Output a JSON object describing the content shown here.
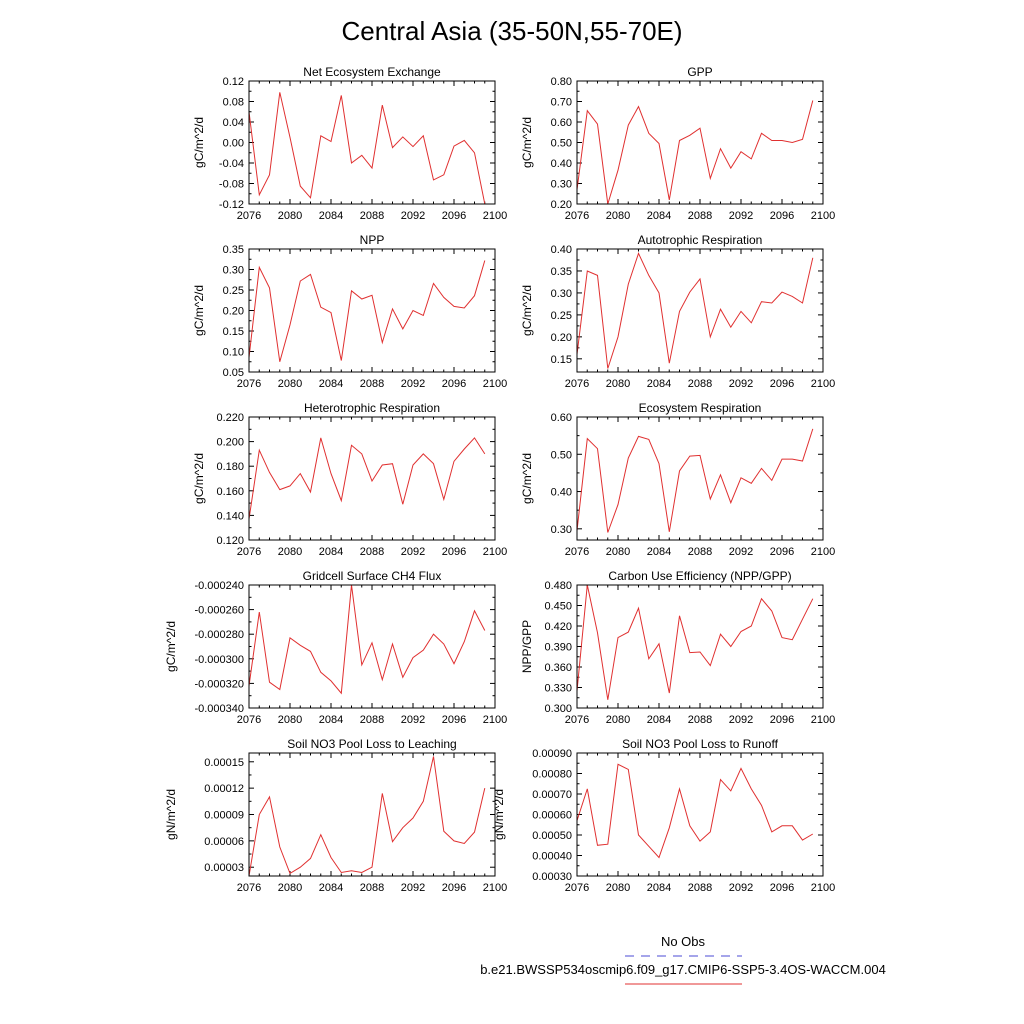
{
  "title": "Central Asia (35-50N,55-70E)",
  "legend": {
    "obs_label": "No Obs",
    "obs_color": "#4b4bd6",
    "model_label": "b.e21.BWSSP534oscmip6.f09_g17.CMIP6-SSP5-3.4OS-WACCM.004",
    "model_color": "#e03030"
  },
  "chart_data": [
    {
      "type": "line",
      "title": "Net Ecosystem Exchange",
      "ylabel": "gC/m^2/d",
      "xlim": [
        2076,
        2100
      ],
      "ylim": [
        -0.12,
        0.12
      ],
      "xticks": [
        "2076",
        "2080",
        "2084",
        "2088",
        "2092",
        "2096",
        "2100"
      ],
      "yticks": [
        "-0.12",
        "-0.08",
        "-0.04",
        "0.00",
        "0.04",
        "0.08",
        "0.12"
      ],
      "x": [
        2075,
        2076,
        2077,
        2078,
        2079,
        2080,
        2081,
        2082,
        2083,
        2084,
        2085,
        2086,
        2087,
        2088,
        2089,
        2090,
        2091,
        2092,
        2093,
        2094,
        2095,
        2096,
        2097,
        2098,
        2099
      ],
      "series": [
        {
          "values": [
            0.07,
            0.06,
            -0.102,
            -0.063,
            0.098,
            0.01,
            -0.085,
            -0.108,
            0.013,
            0.002,
            0.092,
            -0.04,
            -0.025,
            -0.05,
            0.073,
            -0.01,
            0.011,
            -0.008,
            0.013,
            -0.073,
            -0.063,
            -0.007,
            0.004,
            -0.02,
            -0.12
          ]
        }
      ]
    },
    {
      "type": "line",
      "title": "GPP",
      "ylabel": "gC/m^2/d",
      "xlim": [
        2076,
        2100
      ],
      "ylim": [
        0.2,
        0.8
      ],
      "xticks": [
        "2076",
        "2080",
        "2084",
        "2088",
        "2092",
        "2096",
        "2100"
      ],
      "yticks": [
        "0.20",
        "0.30",
        "0.40",
        "0.50",
        "0.60",
        "0.70",
        "0.80"
      ],
      "x": [
        2076,
        2077,
        2078,
        2079,
        2080,
        2081,
        2082,
        2083,
        2084,
        2085,
        2086,
        2087,
        2088,
        2089,
        2090,
        2091,
        2092,
        2093,
        2094,
        2095,
        2096,
        2097,
        2098,
        2099
      ],
      "series": [
        {
          "values": [
            0.27,
            0.655,
            0.59,
            0.2,
            0.365,
            0.585,
            0.675,
            0.545,
            0.495,
            0.22,
            0.51,
            0.535,
            0.57,
            0.325,
            0.47,
            0.375,
            0.455,
            0.42,
            0.545,
            0.51,
            0.51,
            0.5,
            0.515,
            0.705
          ]
        }
      ]
    },
    {
      "type": "line",
      "title": "NPP",
      "ylabel": "gC/m^2/d",
      "xlim": [
        2076,
        2100
      ],
      "ylim": [
        0.05,
        0.35
      ],
      "xticks": [
        "2076",
        "2080",
        "2084",
        "2088",
        "2092",
        "2096",
        "2100"
      ],
      "yticks": [
        "0.05",
        "0.10",
        "0.15",
        "0.20",
        "0.25",
        "0.30",
        "0.35"
      ],
      "x": [
        2076,
        2077,
        2078,
        2079,
        2080,
        2081,
        2082,
        2083,
        2084,
        2085,
        2086,
        2087,
        2088,
        2089,
        2090,
        2091,
        2092,
        2093,
        2094,
        2095,
        2096,
        2097,
        2098,
        2099
      ],
      "series": [
        {
          "values": [
            0.085,
            0.305,
            0.255,
            0.075,
            0.165,
            0.272,
            0.288,
            0.208,
            0.195,
            0.078,
            0.248,
            0.228,
            0.237,
            0.122,
            0.204,
            0.155,
            0.2,
            0.188,
            0.266,
            0.232,
            0.21,
            0.206,
            0.236,
            0.322
          ]
        }
      ]
    },
    {
      "type": "line",
      "title": "Autotrophic Respiration",
      "ylabel": "gC/m^2/d",
      "xlim": [
        2076,
        2100
      ],
      "ylim": [
        0.12,
        0.4
      ],
      "xticks": [
        "2076",
        "2080",
        "2084",
        "2088",
        "2092",
        "2096",
        "2100"
      ],
      "yticks": [
        "0.15",
        "0.20",
        "0.25",
        "0.30",
        "0.35",
        "0.40"
      ],
      "x": [
        2076,
        2077,
        2078,
        2079,
        2080,
        2081,
        2082,
        2083,
        2084,
        2085,
        2086,
        2087,
        2088,
        2089,
        2090,
        2091,
        2092,
        2093,
        2094,
        2095,
        2096,
        2097,
        2098,
        2099
      ],
      "series": [
        {
          "values": [
            0.16,
            0.35,
            0.34,
            0.128,
            0.2,
            0.32,
            0.39,
            0.34,
            0.3,
            0.14,
            0.258,
            0.302,
            0.332,
            0.2,
            0.263,
            0.222,
            0.258,
            0.232,
            0.28,
            0.277,
            0.302,
            0.292,
            0.277,
            0.38
          ]
        }
      ]
    },
    {
      "type": "line",
      "title": "Heterotrophic Respiration",
      "ylabel": "gC/m^2/d",
      "xlim": [
        2076,
        2100
      ],
      "ylim": [
        0.12,
        0.22
      ],
      "xticks": [
        "2076",
        "2080",
        "2084",
        "2088",
        "2092",
        "2096",
        "2100"
      ],
      "yticks": [
        "0.120",
        "0.140",
        "0.160",
        "0.180",
        "0.200",
        "0.220"
      ],
      "x": [
        2076,
        2077,
        2078,
        2079,
        2080,
        2081,
        2082,
        2083,
        2084,
        2085,
        2086,
        2087,
        2088,
        2089,
        2090,
        2091,
        2092,
        2093,
        2094,
        2095,
        2096,
        2097,
        2098,
        2099
      ],
      "series": [
        {
          "values": [
            0.137,
            0.193,
            0.175,
            0.161,
            0.164,
            0.174,
            0.159,
            0.203,
            0.174,
            0.152,
            0.197,
            0.19,
            0.168,
            0.181,
            0.182,
            0.149,
            0.181,
            0.19,
            0.182,
            0.153,
            0.184,
            0.194,
            0.203,
            0.19
          ]
        }
      ]
    },
    {
      "type": "line",
      "title": "Ecosystem Respiration",
      "ylabel": "gC/m^2/d",
      "xlim": [
        2076,
        2100
      ],
      "ylim": [
        0.27,
        0.6
      ],
      "xticks": [
        "2076",
        "2080",
        "2084",
        "2088",
        "2092",
        "2096",
        "2100"
      ],
      "yticks": [
        "0.30",
        "0.40",
        "0.50",
        "0.60"
      ],
      "x": [
        2076,
        2077,
        2078,
        2079,
        2080,
        2081,
        2082,
        2083,
        2084,
        2085,
        2086,
        2087,
        2088,
        2089,
        2090,
        2091,
        2092,
        2093,
        2094,
        2095,
        2096,
        2097,
        2098,
        2099
      ],
      "series": [
        {
          "values": [
            0.295,
            0.542,
            0.515,
            0.29,
            0.365,
            0.49,
            0.548,
            0.54,
            0.475,
            0.292,
            0.455,
            0.495,
            0.497,
            0.38,
            0.445,
            0.37,
            0.437,
            0.422,
            0.462,
            0.43,
            0.487,
            0.487,
            0.482,
            0.568
          ]
        }
      ]
    },
    {
      "type": "line",
      "title": "Gridcell Surface CH4 Flux",
      "ylabel": "gC/m^2/d",
      "xlim": [
        2076,
        2100
      ],
      "ylim": [
        -0.00034,
        -0.00024
      ],
      "xticks": [
        "2076",
        "2080",
        "2084",
        "2088",
        "2092",
        "2096",
        "2100"
      ],
      "yticks": [
        "-0.000340",
        "-0.000320",
        "-0.000300",
        "-0.000280",
        "-0.000260",
        "-0.000240"
      ],
      "x": [
        2076,
        2077,
        2078,
        2079,
        2080,
        2081,
        2082,
        2083,
        2084,
        2085,
        2086,
        2087,
        2088,
        2089,
        2090,
        2091,
        2092,
        2093,
        2094,
        2095,
        2096,
        2097,
        2098,
        2099
      ],
      "series": [
        {
          "values": [
            -0.000322,
            -0.000262,
            -0.000319,
            -0.000325,
            -0.000283,
            -0.000289,
            -0.000294,
            -0.000311,
            -0.000318,
            -0.000328,
            -0.00024,
            -0.000305,
            -0.000287,
            -0.000317,
            -0.000288,
            -0.000315,
            -0.000299,
            -0.000293,
            -0.00028,
            -0.000288,
            -0.000304,
            -0.000286,
            -0.000261,
            -0.000277
          ]
        }
      ]
    },
    {
      "type": "line",
      "title": "Carbon Use Efficiency (NPP/GPP)",
      "ylabel": "NPP/GPP",
      "xlim": [
        2076,
        2100
      ],
      "ylim": [
        0.3,
        0.48
      ],
      "xticks": [
        "2076",
        "2080",
        "2084",
        "2088",
        "2092",
        "2096",
        "2100"
      ],
      "yticks": [
        "0.300",
        "0.330",
        "0.360",
        "0.390",
        "0.420",
        "0.450",
        "0.480"
      ],
      "x": [
        2076,
        2077,
        2078,
        2079,
        2080,
        2081,
        2082,
        2083,
        2084,
        2085,
        2086,
        2087,
        2088,
        2089,
        2090,
        2091,
        2092,
        2093,
        2094,
        2095,
        2096,
        2097,
        2098,
        2099
      ],
      "series": [
        {
          "values": [
            0.325,
            0.48,
            0.41,
            0.312,
            0.403,
            0.411,
            0.446,
            0.372,
            0.394,
            0.322,
            0.435,
            0.381,
            0.382,
            0.362,
            0.408,
            0.39,
            0.412,
            0.42,
            0.46,
            0.442,
            0.403,
            0.4,
            0.43,
            0.46
          ]
        }
      ]
    },
    {
      "type": "line",
      "title": "Soil NO3 Pool Loss to Leaching",
      "ylabel": "gN/m^2/d",
      "xlim": [
        2076,
        2100
      ],
      "ylim": [
        2e-05,
        0.00016
      ],
      "xticks": [
        "2076",
        "2080",
        "2084",
        "2088",
        "2092",
        "2096",
        "2100"
      ],
      "yticks": [
        "0.00003",
        "0.00006",
        "0.00009",
        "0.00012",
        "0.00015"
      ],
      "x": [
        2076,
        2077,
        2078,
        2079,
        2080,
        2081,
        2082,
        2083,
        2084,
        2085,
        2086,
        2087,
        2088,
        2089,
        2090,
        2091,
        2092,
        2093,
        2094,
        2095,
        2096,
        2097,
        2098,
        2099
      ],
      "series": [
        {
          "values": [
            2e-05,
            9e-05,
            0.00011,
            5.3e-05,
            2.3e-05,
            3e-05,
            4e-05,
            6.7e-05,
            4.1e-05,
            2.4e-05,
            2.6e-05,
            2.4e-05,
            3e-05,
            0.000114,
            5.9e-05,
            7.5e-05,
            8.6e-05,
            0.000105,
            0.000156,
            7.1e-05,
            6e-05,
            5.7e-05,
            7e-05,
            0.00012
          ]
        }
      ]
    },
    {
      "type": "line",
      "title": "Soil NO3 Pool Loss to Runoff",
      "ylabel": "gN/m^2/d",
      "xlim": [
        2076,
        2100
      ],
      "ylim": [
        0.0003,
        0.0009
      ],
      "xticks": [
        "2076",
        "2080",
        "2084",
        "2088",
        "2092",
        "2096",
        "2100"
      ],
      "yticks": [
        "0.00030",
        "0.00040",
        "0.00050",
        "0.00060",
        "0.00070",
        "0.00080",
        "0.00090"
      ],
      "x": [
        2076,
        2077,
        2078,
        2079,
        2080,
        2081,
        2082,
        2083,
        2084,
        2085,
        2086,
        2087,
        2088,
        2089,
        2090,
        2091,
        2092,
        2093,
        2094,
        2095,
        2096,
        2097,
        2098,
        2099
      ],
      "series": [
        {
          "values": [
            0.00057,
            0.000725,
            0.00045,
            0.000455,
            0.000845,
            0.00082,
            0.0005,
            0.000445,
            0.00039,
            0.000535,
            0.000725,
            0.000545,
            0.00047,
            0.000515,
            0.00077,
            0.000715,
            0.000825,
            0.000725,
            0.000645,
            0.000515,
            0.000545,
            0.000545,
            0.000475,
            0.000505
          ]
        }
      ]
    }
  ]
}
